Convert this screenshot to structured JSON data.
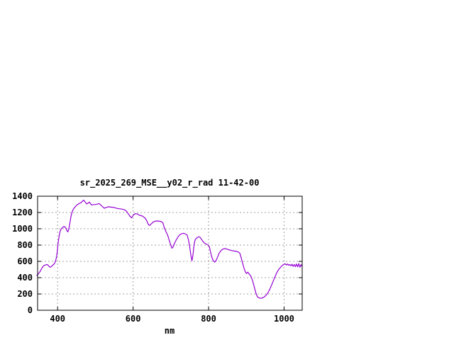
{
  "window": {
    "background": "#ffffff"
  },
  "chart_data": {
    "type": "line",
    "title": "sr_2025_269_MSE__y02_r_rad 11-42-00",
    "xlabel": "nm",
    "ylabel": "",
    "xlim": [
      347,
      1048
    ],
    "ylim": [
      0,
      1400
    ],
    "x_ticks": [
      400,
      600,
      800,
      1000
    ],
    "y_ticks": [
      0,
      200,
      400,
      600,
      800,
      1000,
      1200,
      1400
    ],
    "grid": true,
    "legend": "none",
    "colors": {
      "line": "#9400d3",
      "grid": "#a0a0a0",
      "axis": "#000000",
      "text": "#000000",
      "background": "#ffffff"
    },
    "series": [
      {
        "points": [
          [
            345,
            428
          ],
          [
            348,
            442
          ],
          [
            351,
            458
          ],
          [
            354,
            478
          ],
          [
            357,
            505
          ],
          [
            360,
            528
          ],
          [
            363,
            545
          ],
          [
            366,
            553
          ],
          [
            369,
            558
          ],
          [
            372,
            562
          ],
          [
            375,
            552
          ],
          [
            378,
            535
          ],
          [
            381,
            528
          ],
          [
            384,
            540
          ],
          [
            387,
            552
          ],
          [
            390,
            565
          ],
          [
            393,
            585
          ],
          [
            395,
            612
          ],
          [
            397,
            650
          ],
          [
            399,
            720
          ],
          [
            401,
            810
          ],
          [
            403,
            880
          ],
          [
            405,
            935
          ],
          [
            407,
            975
          ],
          [
            410,
            1000
          ],
          [
            413,
            1015
          ],
          [
            416,
            1028
          ],
          [
            419,
            1025
          ],
          [
            422,
            1005
          ],
          [
            425,
            975
          ],
          [
            427,
            962
          ],
          [
            429,
            985
          ],
          [
            431,
            1030
          ],
          [
            433,
            1085
          ],
          [
            435,
            1140
          ],
          [
            437,
            1185
          ],
          [
            440,
            1225
          ],
          [
            443,
            1250
          ],
          [
            447,
            1272
          ],
          [
            451,
            1290
          ],
          [
            456,
            1308
          ],
          [
            462,
            1320
          ],
          [
            466,
            1340
          ],
          [
            469,
            1352
          ],
          [
            473,
            1330
          ],
          [
            477,
            1305
          ],
          [
            481,
            1315
          ],
          [
            484,
            1328
          ],
          [
            487,
            1310
          ],
          [
            490,
            1292
          ],
          [
            495,
            1297
          ],
          [
            500,
            1297
          ],
          [
            505,
            1303
          ],
          [
            509,
            1310
          ],
          [
            513,
            1300
          ],
          [
            518,
            1276
          ],
          [
            524,
            1252
          ],
          [
            529,
            1262
          ],
          [
            534,
            1270
          ],
          [
            540,
            1266
          ],
          [
            546,
            1264
          ],
          [
            552,
            1258
          ],
          [
            558,
            1250
          ],
          [
            564,
            1246
          ],
          [
            570,
            1242
          ],
          [
            576,
            1236
          ],
          [
            582,
            1218
          ],
          [
            587,
            1185
          ],
          [
            592,
            1152
          ],
          [
            596,
            1136
          ],
          [
            601,
            1170
          ],
          [
            606,
            1185
          ],
          [
            611,
            1183
          ],
          [
            617,
            1165
          ],
          [
            623,
            1160
          ],
          [
            628,
            1145
          ],
          [
            632,
            1130
          ],
          [
            636,
            1100
          ],
          [
            641,
            1050
          ],
          [
            644,
            1042
          ],
          [
            648,
            1060
          ],
          [
            653,
            1082
          ],
          [
            658,
            1092
          ],
          [
            664,
            1096
          ],
          [
            670,
            1092
          ],
          [
            675,
            1088
          ],
          [
            679,
            1072
          ],
          [
            683,
            1010
          ],
          [
            687,
            965
          ],
          [
            691,
            930
          ],
          [
            696,
            855
          ],
          [
            700,
            800
          ],
          [
            703,
            762
          ],
          [
            706,
            778
          ],
          [
            710,
            825
          ],
          [
            714,
            862
          ],
          [
            719,
            900
          ],
          [
            724,
            928
          ],
          [
            729,
            940
          ],
          [
            734,
            945
          ],
          [
            739,
            935
          ],
          [
            743,
            925
          ],
          [
            747,
            860
          ],
          [
            750,
            780
          ],
          [
            753,
            680
          ],
          [
            756,
            608
          ],
          [
            759,
            690
          ],
          [
            762,
            820
          ],
          [
            765,
            870
          ],
          [
            769,
            888
          ],
          [
            773,
            902
          ],
          [
            777,
            898
          ],
          [
            781,
            872
          ],
          [
            785,
            845
          ],
          [
            789,
            825
          ],
          [
            794,
            812
          ],
          [
            799,
            800
          ],
          [
            802,
            780
          ],
          [
            805,
            720
          ],
          [
            808,
            660
          ],
          [
            812,
            612
          ],
          [
            816,
            590
          ],
          [
            820,
            612
          ],
          [
            824,
            655
          ],
          [
            828,
            700
          ],
          [
            832,
            728
          ],
          [
            836,
            745
          ],
          [
            840,
            755
          ],
          [
            845,
            757
          ],
          [
            850,
            748
          ],
          [
            856,
            740
          ],
          [
            862,
            732
          ],
          [
            868,
            727
          ],
          [
            874,
            723
          ],
          [
            879,
            715
          ],
          [
            883,
            698
          ],
          [
            886,
            650
          ],
          [
            889,
            600
          ],
          [
            892,
            545
          ],
          [
            895,
            500
          ],
          [
            898,
            465
          ],
          [
            901,
            452
          ],
          [
            904,
            468
          ],
          [
            907,
            448
          ],
          [
            910,
            432
          ],
          [
            913,
            408
          ],
          [
            916,
            370
          ],
          [
            919,
            320
          ],
          [
            922,
            268
          ],
          [
            925,
            215
          ],
          [
            928,
            178
          ],
          [
            931,
            158
          ],
          [
            935,
            150
          ],
          [
            939,
            147
          ],
          [
            943,
            152
          ],
          [
            947,
            163
          ],
          [
            951,
            178
          ],
          [
            955,
            198
          ],
          [
            959,
            228
          ],
          [
            963,
            268
          ],
          [
            967,
            310
          ],
          [
            971,
            355
          ],
          [
            975,
            400
          ],
          [
            979,
            445
          ],
          [
            983,
            480
          ],
          [
            987,
            508
          ],
          [
            991,
            530
          ],
          [
            995,
            548
          ],
          [
            999,
            562
          ],
          [
            1003,
            570
          ],
          [
            1006,
            556
          ],
          [
            1009,
            568
          ],
          [
            1012,
            552
          ],
          [
            1015,
            562
          ],
          [
            1018,
            545
          ],
          [
            1021,
            565
          ],
          [
            1024,
            538
          ],
          [
            1027,
            562
          ],
          [
            1030,
            535
          ],
          [
            1033,
            568
          ],
          [
            1036,
            532
          ],
          [
            1039,
            572
          ],
          [
            1042,
            528
          ],
          [
            1045,
            560
          ],
          [
            1047,
            542
          ]
        ]
      }
    ]
  }
}
